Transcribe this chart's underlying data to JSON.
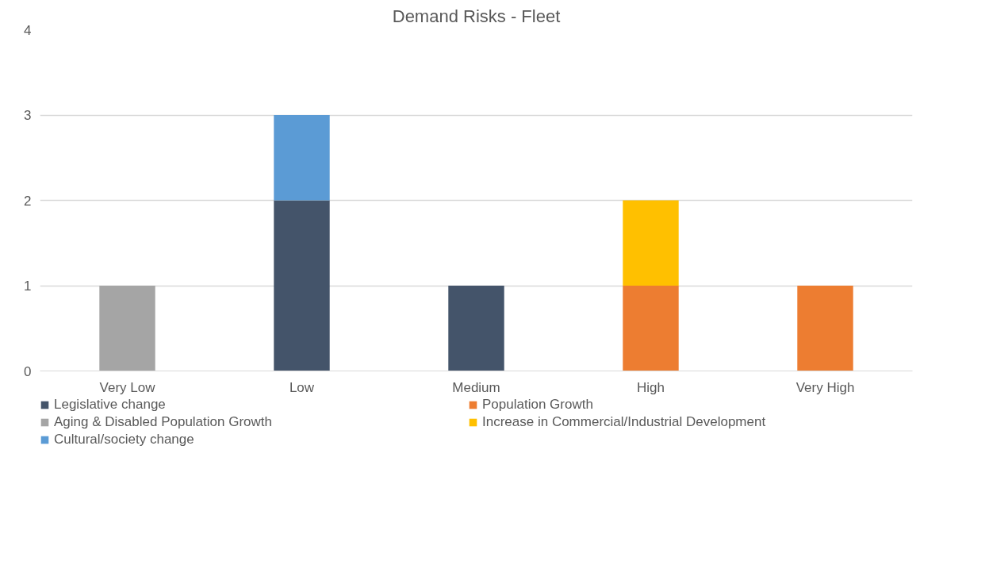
{
  "chart_data": {
    "type": "bar",
    "title": "Demand Risks - Fleet",
    "stacked": true,
    "categories": [
      "Very Low",
      "Low",
      "Medium",
      "High",
      "Very High"
    ],
    "series": [
      {
        "name": "Legislative change",
        "color": "#44546a",
        "values": [
          null,
          2,
          1,
          null,
          null
        ]
      },
      {
        "name": "Population Growth",
        "color": "#ed7d31",
        "values": [
          null,
          null,
          null,
          1,
          1
        ]
      },
      {
        "name": "Aging & Disabled Population Growth",
        "color": "#a5a5a5",
        "values": [
          1,
          null,
          null,
          null,
          null
        ]
      },
      {
        "name": "Increase in Commercial/Industrial Development",
        "color": "#ffc000",
        "values": [
          null,
          null,
          null,
          1,
          null
        ]
      },
      {
        "name": "Cultural/society change",
        "color": "#5b9bd5",
        "values": [
          null,
          1,
          null,
          null,
          null
        ]
      }
    ],
    "ylim": [
      0,
      4
    ],
    "yticks": [
      0,
      1,
      2,
      3,
      4
    ],
    "grid": "y",
    "legend": "bottom"
  }
}
